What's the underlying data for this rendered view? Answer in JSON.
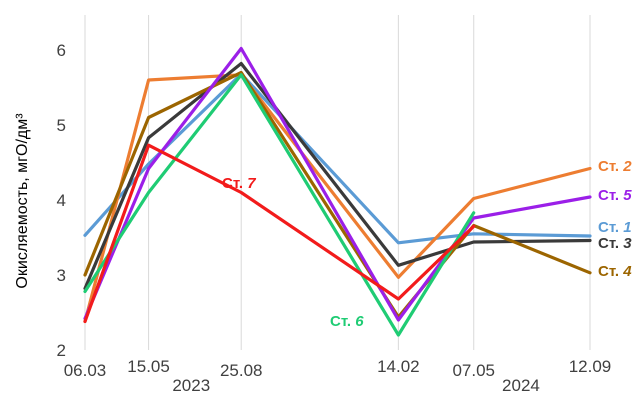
{
  "chart_data": {
    "type": "line",
    "ylabel": "Окисляемость,  мгО/дм³",
    "ylim": [
      2,
      6.5
    ],
    "yticks": [
      2,
      3,
      4,
      5,
      6
    ],
    "x_dates": [
      "2023-03-06",
      "2023-05-15",
      "2023-08-25",
      "2024-02-14",
      "2024-05-07",
      "2024-09-12"
    ],
    "x_tick_labels": [
      "06.03",
      "15.05",
      "25.08",
      "14.02",
      "07.05",
      "12.09"
    ],
    "year_labels": [
      {
        "text": "2023",
        "date": "2023-07-01"
      },
      {
        "text": "2024",
        "date": "2024-06-28"
      }
    ],
    "grid": "vertical",
    "series": [
      {
        "name": "Ст. 1",
        "prefix": "Ст.",
        "num": "1",
        "color": "#5b9bd5",
        "points": [
          [
            "2023-03-06",
            3.53
          ],
          [
            "2023-05-15",
            4.48
          ],
          [
            "2023-08-25",
            5.68
          ],
          [
            "2024-02-14",
            3.43
          ],
          [
            "2024-05-07",
            3.55
          ],
          [
            "2024-09-12",
            3.52
          ]
        ]
      },
      {
        "name": "Ст. 2",
        "prefix": "Ст.",
        "num": "2",
        "color": "#ed7d31",
        "points": [
          [
            "2023-03-06",
            2.38
          ],
          [
            "2023-05-15",
            5.6
          ],
          [
            "2023-08-25",
            5.67
          ],
          [
            "2024-02-14",
            2.97
          ],
          [
            "2024-05-07",
            4.02
          ],
          [
            "2024-09-12",
            4.42
          ]
        ]
      },
      {
        "name": "Ст. 3",
        "prefix": "Ст.",
        "num": "3",
        "color": "#3a3a3a",
        "points": [
          [
            "2023-03-06",
            2.82
          ],
          [
            "2023-05-15",
            4.83
          ],
          [
            "2023-08-25",
            5.82
          ],
          [
            "2024-02-14",
            3.13
          ],
          [
            "2024-05-07",
            3.44
          ],
          [
            "2024-09-12",
            3.46
          ]
        ]
      },
      {
        "name": "Ст. 4",
        "prefix": "Ст.",
        "num": "4",
        "color": "#9c6500",
        "points": [
          [
            "2023-03-06",
            3.0
          ],
          [
            "2023-05-15",
            5.1
          ],
          [
            "2023-08-25",
            5.7
          ],
          [
            "2024-02-14",
            2.44
          ],
          [
            "2024-05-07",
            3.66
          ],
          [
            "2024-09-12",
            3.03
          ]
        ]
      },
      {
        "name": "Ст. 5",
        "prefix": "Ст.",
        "num": "5",
        "color": "#9b1fe8",
        "points": [
          [
            "2023-03-06",
            2.42
          ],
          [
            "2023-05-15",
            4.42
          ],
          [
            "2023-08-25",
            6.02
          ],
          [
            "2024-02-14",
            2.4
          ],
          [
            "2024-05-07",
            3.76
          ],
          [
            "2024-09-12",
            4.04
          ]
        ]
      },
      {
        "name": "Ст. 6",
        "prefix": "Ст.",
        "num": "6",
        "color": "#1fcc74",
        "points": [
          [
            "2023-03-06",
            2.78
          ],
          [
            "2023-05-15",
            4.1
          ],
          [
            "2023-08-25",
            5.67
          ],
          [
            "2024-02-14",
            2.2
          ],
          [
            "2024-05-07",
            3.83
          ]
        ]
      },
      {
        "name": "Ст. 7",
        "prefix": "Ст.",
        "num": "7",
        "color": "#f21b1b",
        "points": [
          [
            "2023-03-06",
            2.38
          ],
          [
            "2023-05-15",
            4.73
          ],
          [
            "2023-08-25",
            4.1
          ],
          [
            "2024-02-14",
            2.68
          ],
          [
            "2024-05-07",
            3.65
          ]
        ]
      }
    ]
  }
}
